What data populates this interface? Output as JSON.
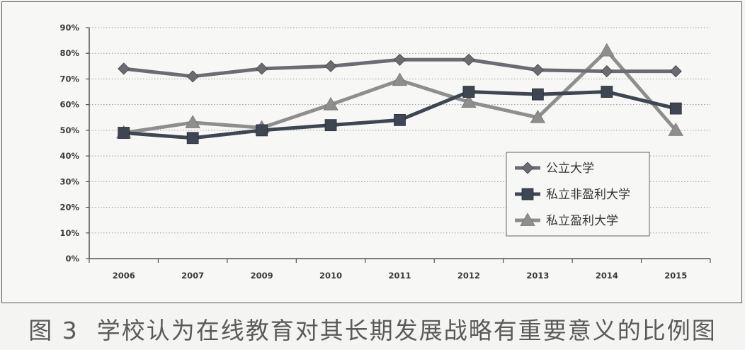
{
  "chart_data": {
    "type": "line",
    "categories": [
      "2006",
      "2007",
      "2009",
      "2010",
      "2011",
      "2012",
      "2013",
      "2014",
      "2015"
    ],
    "series": [
      {
        "name": "公立大学",
        "marker": "diamond",
        "color": "#6b6b72",
        "values": [
          74,
          71,
          74,
          75,
          77.5,
          77.5,
          73.5,
          73,
          73
        ]
      },
      {
        "name": "私立非盈利大学",
        "marker": "square",
        "color": "#3e4652",
        "values": [
          49,
          47,
          50,
          52,
          54,
          65,
          64,
          65,
          58.5
        ]
      },
      {
        "name": "私立盈利大学",
        "marker": "triangle",
        "color": "#8e8e8e",
        "values": [
          49,
          53,
          51,
          60,
          69.5,
          61,
          55,
          81,
          50
        ]
      }
    ],
    "yticks": [
      "0%",
      "10%",
      "20%",
      "30%",
      "40%",
      "50%",
      "60%",
      "70%",
      "80%",
      "90%"
    ],
    "ylim": [
      0,
      90
    ],
    "grid": true,
    "legend_position": "inside-right"
  },
  "caption": {
    "figure_number": "图 3",
    "text": "学校认为在线教育对其长期发展战略有重要意义的比例图"
  }
}
